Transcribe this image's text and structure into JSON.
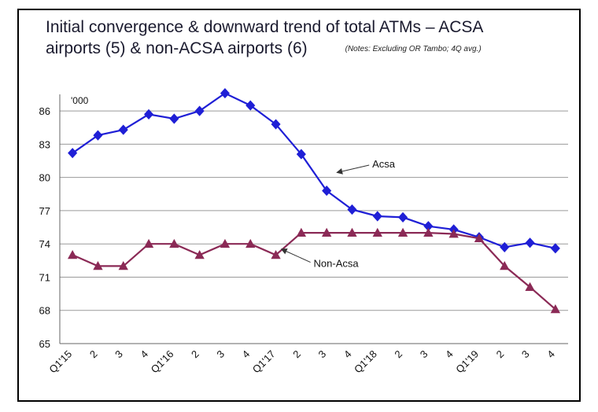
{
  "chart_data": {
    "type": "line",
    "title_line1": "Initial convergence & downward trend of total ATMs – ACSA",
    "title_line2": "airports (5) & non-ACSA airports (6)",
    "notes": "(Notes: Excluding OR Tambo; 4Q avg.)",
    "unit_label": "'000",
    "ylim": [
      65,
      87.5
    ],
    "yticks": [
      65,
      68,
      71,
      74,
      77,
      80,
      83,
      86
    ],
    "categories": [
      "Q1'15",
      "2",
      "3",
      "4",
      "Q1'16",
      "2",
      "3",
      "4",
      "Q1'17",
      "2",
      "3",
      "4",
      "Q1'18",
      "2",
      "3",
      "4",
      "Q1'19",
      "2",
      "3",
      "4"
    ],
    "series": [
      {
        "name": "Acsa",
        "label": "Acsa",
        "color": "#1f1fd6",
        "marker": "diamond",
        "values": [
          82.2,
          83.8,
          84.3,
          85.7,
          85.3,
          86.0,
          87.6,
          86.5,
          84.8,
          82.1,
          78.8,
          77.1,
          76.5,
          76.4,
          75.6,
          75.3,
          74.6,
          73.7,
          74.1,
          73.6
        ]
      },
      {
        "name": "Non-Acsa",
        "label": "Non-Acsa",
        "color": "#8b2a56",
        "marker": "triangle",
        "values": [
          73.0,
          72.0,
          72.0,
          74.0,
          74.0,
          73.0,
          74.0,
          74.0,
          73.0,
          75.0,
          75.0,
          75.0,
          75.0,
          75.0,
          75.0,
          74.9,
          74.5,
          72.0,
          70.1,
          68.1
        ]
      }
    ]
  }
}
